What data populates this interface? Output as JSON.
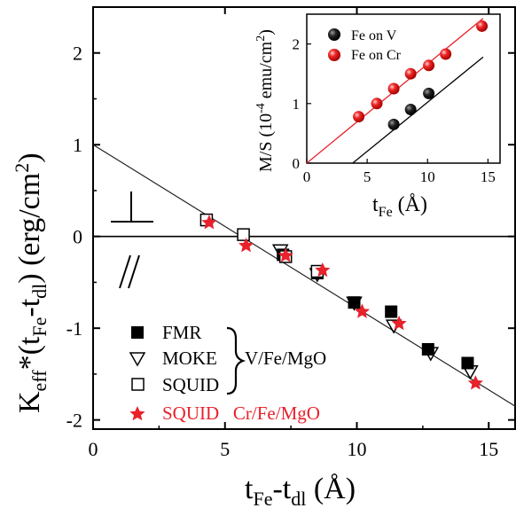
{
  "chart_data": [
    {
      "type": "scatter",
      "xlabel_main": "t",
      "xlabel_sub1": "Fe",
      "xlabel_mid": "-t",
      "xlabel_sub2": "dl",
      "xlabel_unit": " (Å)",
      "ylabel_main": "K",
      "ylabel_sub1": "eff",
      "ylabel_mid": "*(t",
      "ylabel_sub2": "Fe",
      "ylabel_mid2": "-t",
      "ylabel_sub3": "dl",
      "ylabel_unit": ") (erg/cm",
      "ylabel_sup": "2",
      "ylabel_end": ")",
      "xlim": [
        0,
        16
      ],
      "ylim": [
        -2.1,
        2.5
      ],
      "xticks": [
        "0",
        "5",
        "10",
        "15"
      ],
      "yticks": [
        "-2",
        "-1",
        "0",
        "1",
        "2"
      ],
      "fit_line": {
        "x": [
          0,
          16
        ],
        "y": [
          1.0,
          -1.85
        ]
      },
      "zero_line_y": 0,
      "series": [
        {
          "name": "FMR",
          "marker": "filled-square",
          "color": "#000000",
          "x": [
            7.2,
            8.5,
            9.9,
            11.3,
            12.7,
            14.2
          ],
          "y": [
            -0.2,
            -0.4,
            -0.72,
            -0.82,
            -1.23,
            -1.38
          ]
        },
        {
          "name": "MOKE",
          "marker": "open-triangle-down",
          "color": "#000000",
          "x": [
            7.1,
            8.5,
            9.9,
            11.4,
            12.8,
            14.3
          ],
          "y": [
            -0.15,
            -0.41,
            -0.72,
            -0.97,
            -1.27,
            -1.47
          ]
        },
        {
          "name": "SQUID",
          "marker": "open-square",
          "color": "#000000",
          "x": [
            4.3,
            5.7,
            7.3,
            8.5
          ],
          "y": [
            0.18,
            0.02,
            -0.22,
            -0.38
          ]
        },
        {
          "name": "SQUID   Cr/Fe/MgO",
          "marker": "star",
          "color": "#e8212b",
          "x": [
            4.4,
            5.8,
            7.3,
            8.7,
            10.2,
            11.6,
            14.5
          ],
          "y": [
            0.15,
            -0.1,
            -0.21,
            -0.37,
            -0.82,
            -0.95,
            -1.6
          ]
        }
      ],
      "group_label": "V/Fe/MgO"
    },
    {
      "type": "scatter",
      "xlabel_main": "t",
      "xlabel_sub": "Fe",
      "xlabel_unit": " (Å)",
      "ylabel_main": "M/S (10",
      "ylabel_sup": "-4",
      "ylabel_unit": " emu/cm",
      "ylabel_sup2": "2",
      "ylabel_end": ")",
      "xlim": [
        0,
        16
      ],
      "ylim": [
        0,
        2.5
      ],
      "xticks": [
        "0",
        "5",
        "10",
        "15"
      ],
      "yticks": [
        "0",
        "1",
        "2"
      ],
      "series": [
        {
          "name": "Fe on V",
          "color": "#111111",
          "x": [
            7.2,
            8.6,
            10.1
          ],
          "y": [
            0.65,
            0.9,
            1.17
          ],
          "fit": {
            "x": [
              3.8,
              14.6
            ],
            "y": [
              0,
              1.78
            ]
          }
        },
        {
          "name": "Fe on Cr",
          "color": "#e8212b",
          "x": [
            4.3,
            5.8,
            7.2,
            8.6,
            10.1,
            11.5,
            14.5
          ],
          "y": [
            0.78,
            1.0,
            1.25,
            1.5,
            1.64,
            1.83,
            2.3
          ],
          "fit": {
            "x": [
              0,
              14.6
            ],
            "y": [
              0,
              2.43
            ]
          }
        }
      ]
    }
  ],
  "annotations": {
    "squid_group_colored": "SQUID   Cr/Fe/MgO"
  }
}
